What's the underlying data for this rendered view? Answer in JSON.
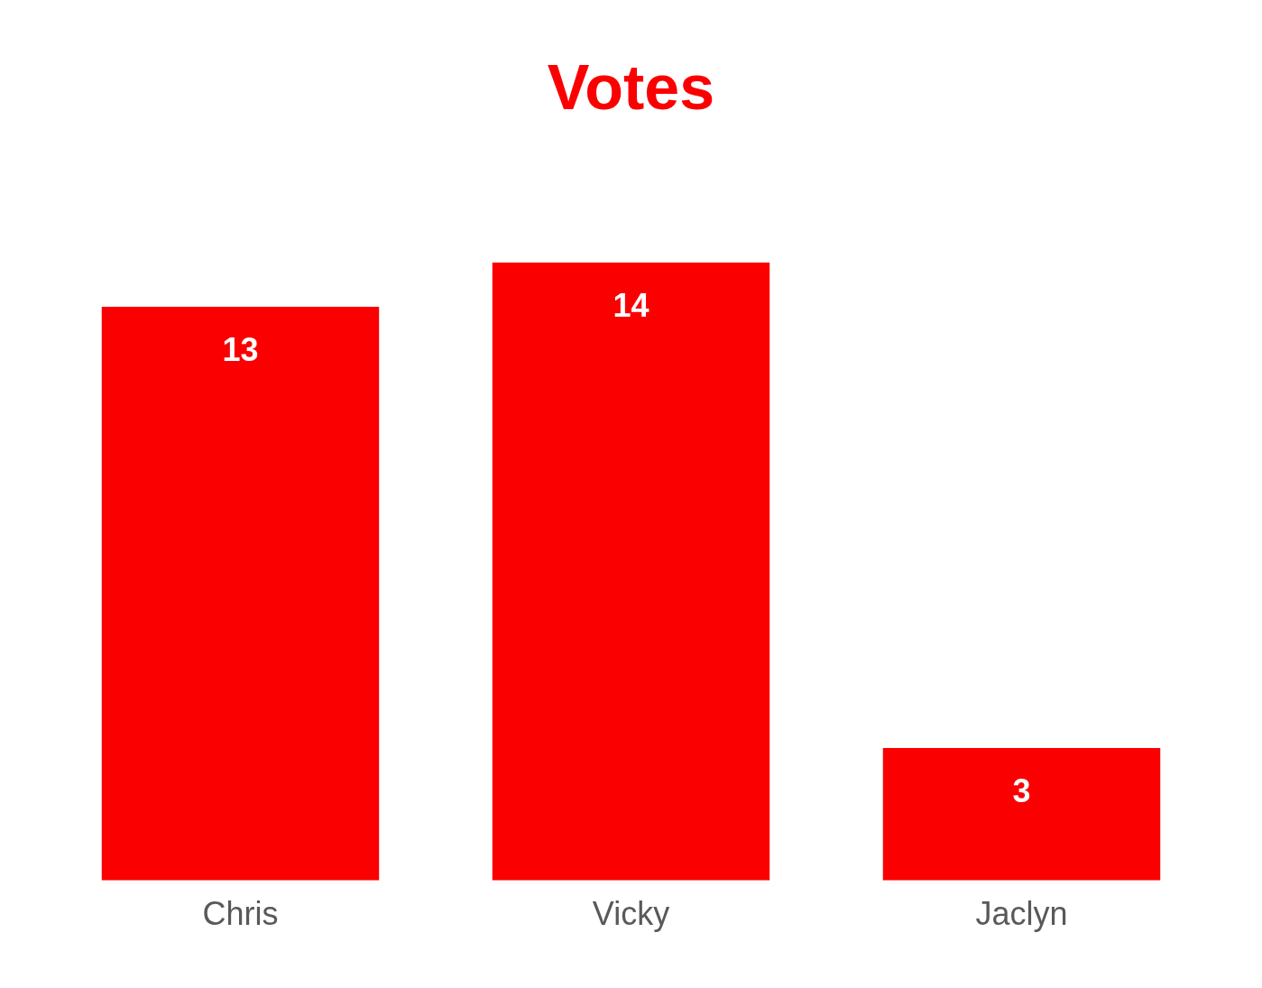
{
  "chart_data": {
    "type": "bar",
    "title": "Votes",
    "categories": [
      "Chris",
      "Vicky",
      "Jaclyn"
    ],
    "values": [
      13,
      14,
      3
    ],
    "color": "#fa0000",
    "data_labels": true,
    "grid": false,
    "legend": false
  }
}
